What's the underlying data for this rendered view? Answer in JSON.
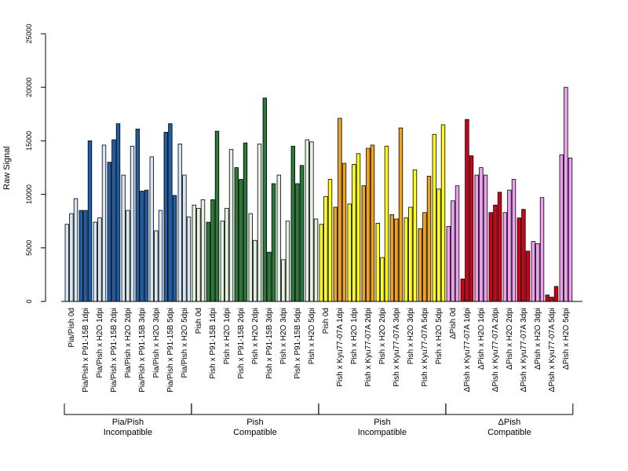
{
  "chart_data": {
    "type": "bar",
    "ylabel": "Raw Signal",
    "xlabel": "",
    "ylim": [
      0,
      25000
    ],
    "yticks": [
      0,
      5000,
      10000,
      15000,
      20000,
      25000
    ],
    "grid": false,
    "categories": [
      "Pia/Pish 0d",
      "Pia/Pish x P91-15B 1dpi",
      "Pia/Pish x H2O 1dpi",
      "Pia/Pish x P91-15B 2dpi",
      "Pia/Pish x H2O 2dpi",
      "Pia/Pish x P91-15B 3dpi",
      "Pia/Pish x H2O 3dpi",
      "Pia/Pish x P91-15B 5dpi",
      "Pia/Pish x H2O 5dpi",
      "Pish 0d",
      "Pish x P91-15B 1dpi",
      "Pish x H2O 1dpi",
      "Pish x P91-15B 2dpi",
      "Pish x H2O 2dpi",
      "Pish x P91-15B 3dpi",
      "Pish x H2O 3dpi",
      "Pish x P91-15B 5dpi",
      "Pish x H2O 5dpi",
      "Pish 0d",
      "Pish x Kyu77-07A 1dpi",
      "Pish x H2O 1dpi",
      "Pish x Kyu77-07A 2dpi",
      "Pish x H2O 2dpi",
      "Pish x Kyu77-07A 3dpi",
      "Pish x H2O 3dpi",
      "Pish x Kyu77-07A 5dpi",
      "Pish x H2O 5dpi",
      "ΔPish 0d",
      "ΔPish x Kyu77-07A 1dpi",
      "ΔPish x H2O 1dpi",
      "ΔPish x Kyu77-07A 2dpi",
      "ΔPish x H2O 2dpi",
      "ΔPish x Kyu77-07A 3dpi",
      "ΔPish x H2O 3dpi",
      "ΔPish x Kyu77-07A 5dpi",
      "ΔPish x H2O 5dpi"
    ],
    "values": [
      [
        7200,
        8200,
        9600
      ],
      [
        8500,
        8500,
        15000
      ],
      [
        7400,
        7800,
        14600
      ],
      [
        13000,
        15100,
        16600
      ],
      [
        11800,
        8500,
        14500
      ],
      [
        16100,
        10300,
        10400
      ],
      [
        13500,
        6600,
        8500
      ],
      [
        15800,
        16600,
        9900
      ],
      [
        14700,
        11800,
        7900
      ],
      [
        9000,
        8700,
        9500
      ],
      [
        7400,
        9500,
        15900
      ],
      [
        7500,
        8700,
        14200
      ],
      [
        12500,
        11400,
        14800
      ],
      [
        8200,
        5700,
        14700
      ],
      [
        19000,
        4600,
        11000
      ],
      [
        11800,
        3900,
        7500
      ],
      [
        14500,
        11000,
        12700
      ],
      [
        15100,
        14900,
        7700
      ],
      [
        7200,
        9800,
        11400
      ],
      [
        8800,
        17100,
        12900
      ],
      [
        9100,
        12800,
        13800
      ],
      [
        10800,
        14300,
        14600
      ],
      [
        7300,
        4100,
        14500
      ],
      [
        8100,
        7700,
        16200
      ],
      [
        7800,
        8800,
        12300
      ],
      [
        6800,
        8300,
        11700
      ],
      [
        15600,
        10500,
        16500
      ],
      [
        7000,
        9400,
        10800
      ],
      [
        2100,
        17000,
        13600
      ],
      [
        11800,
        12500,
        11800
      ],
      [
        8300,
        9000,
        10200
      ],
      [
        8300,
        10400,
        11400
      ],
      [
        7800,
        8600,
        4700
      ],
      [
        5600,
        5400,
        9700
      ],
      [
        600,
        400,
        1400
      ],
      [
        13700,
        20000,
        13400
      ]
    ],
    "colors": {
      "pale_blue": "#d6e6f5",
      "dark_blue": "#1f5fa8",
      "pale_green": "#e6f2e1",
      "dark_green": "#2a7a3a",
      "yellow": "#ffff1a",
      "orange": "#f0a31c",
      "red": "#d4001a",
      "pink": "#f0a0f0",
      "outline": "#000000"
    },
    "bar_color_keys": [
      "pale_blue",
      "dark_blue",
      "pale_blue",
      "dark_blue",
      "pale_blue",
      "dark_blue",
      "pale_blue",
      "dark_blue",
      "pale_blue",
      "pale_green",
      "dark_green",
      "pale_green",
      "dark_green",
      "pale_green",
      "dark_green",
      "pale_green",
      "dark_green",
      "pale_green",
      "yellow",
      "orange",
      "yellow",
      "orange",
      "yellow",
      "orange",
      "yellow",
      "orange",
      "yellow",
      "pink",
      "red",
      "pink",
      "red",
      "pink",
      "red",
      "pink",
      "red",
      "pink"
    ],
    "groups": [
      {
        "line1": "Pia/Pish",
        "line2": "Incompatible",
        "start": 0,
        "end": 8
      },
      {
        "line1": "Pish",
        "line2": "Compatible",
        "start": 9,
        "end": 17
      },
      {
        "line1": "Pish",
        "line2": "Incompatible",
        "start": 18,
        "end": 26
      },
      {
        "line1": "ΔPish",
        "line2": "Compatible",
        "start": 27,
        "end": 35
      }
    ]
  }
}
